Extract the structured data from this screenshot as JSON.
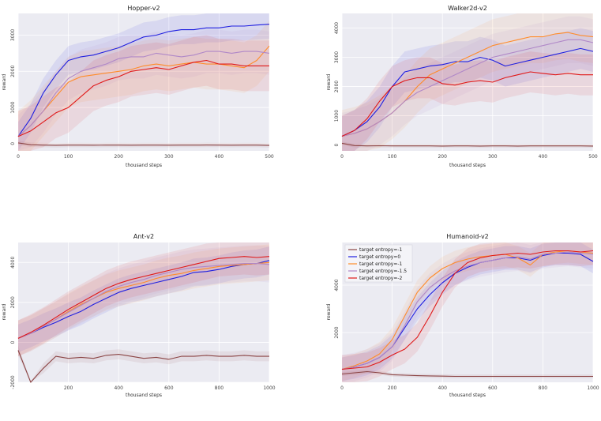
{
  "chart_data": [
    {
      "type": "line",
      "title": "Hopper-v2",
      "xlabel": "thousand steps",
      "ylabel": "reward",
      "xlim": [
        0,
        500
      ],
      "ylim": [
        -200,
        3600
      ],
      "xticks": [
        0,
        100,
        200,
        300,
        400,
        500
      ],
      "yticks": [
        0,
        1000,
        2000,
        3000
      ],
      "x": [
        0,
        25,
        50,
        75,
        100,
        125,
        150,
        175,
        200,
        225,
        250,
        275,
        300,
        325,
        350,
        375,
        400,
        425,
        450,
        475,
        500
      ],
      "series": [
        {
          "name": "target entropy=-1",
          "color": "#8b4545",
          "band": 60,
          "values": [
            20,
            -30,
            -40,
            -45,
            -40,
            -40,
            -42,
            -40,
            -40,
            -42,
            -40,
            -40,
            -42,
            -40,
            -40,
            -38,
            -40,
            -42,
            -40,
            -40,
            -50
          ]
        },
        {
          "name": "target entropy=0",
          "color": "#1f1fe0",
          "band": 400,
          "values": [
            200,
            700,
            1400,
            1900,
            2300,
            2400,
            2450,
            2550,
            2650,
            2800,
            2950,
            3000,
            3100,
            3150,
            3150,
            3200,
            3200,
            3250,
            3250,
            3280,
            3300
          ]
        },
        {
          "name": "target entropy=-1",
          "color": "#ff8c2a",
          "band": 700,
          "values": [
            200,
            500,
            900,
            1300,
            1700,
            1850,
            1900,
            1950,
            2000,
            2050,
            2150,
            2200,
            2150,
            2200,
            2250,
            2200,
            2200,
            2150,
            2100,
            2300,
            2700
          ]
        },
        {
          "name": "target entropy=-1.5",
          "color": "#b088c8",
          "band": 600,
          "values": [
            200,
            500,
            900,
            1400,
            1800,
            2000,
            2100,
            2200,
            2350,
            2400,
            2400,
            2500,
            2450,
            2400,
            2450,
            2550,
            2550,
            2500,
            2550,
            2550,
            2500
          ]
        },
        {
          "name": "target entropy=-2",
          "color": "#e01818",
          "band": 700,
          "values": [
            200,
            350,
            600,
            850,
            1000,
            1300,
            1600,
            1750,
            1850,
            2000,
            2050,
            2100,
            2050,
            2150,
            2250,
            2300,
            2200,
            2200,
            2150,
            2150,
            2150
          ]
        }
      ]
    },
    {
      "type": "line",
      "title": "Walker2d-v2",
      "xlabel": "thousand steps",
      "ylabel": "reward",
      "xlim": [
        0,
        500
      ],
      "ylim": [
        -200,
        4500
      ],
      "xticks": [
        0,
        100,
        200,
        300,
        400,
        500
      ],
      "yticks": [
        0,
        1000,
        2000,
        3000,
        4000
      ],
      "x": [
        0,
        25,
        50,
        75,
        100,
        125,
        150,
        175,
        200,
        225,
        250,
        275,
        300,
        325,
        350,
        375,
        400,
        425,
        450,
        475,
        500
      ],
      "series": [
        {
          "name": "target entropy=-1",
          "color": "#8b4545",
          "band": 60,
          "values": [
            60,
            -20,
            -30,
            -25,
            -30,
            -30,
            -30,
            -30,
            -35,
            -30,
            -30,
            -35,
            -30,
            -30,
            -35,
            -30,
            -30,
            -30,
            -30,
            -30,
            -35
          ]
        },
        {
          "name": "target entropy=0",
          "color": "#1f1fe0",
          "band": 700,
          "values": [
            300,
            500,
            800,
            1300,
            2000,
            2500,
            2600,
            2700,
            2750,
            2850,
            2850,
            3000,
            2900,
            2700,
            2800,
            2900,
            3000,
            3100,
            3200,
            3300,
            3200
          ]
        },
        {
          "name": "target entropy=-1",
          "color": "#ff8c2a",
          "band": 900,
          "values": [
            300,
            400,
            550,
            800,
            1100,
            1500,
            2000,
            2400,
            2600,
            2800,
            3000,
            3200,
            3400,
            3500,
            3600,
            3700,
            3700,
            3800,
            3850,
            3750,
            3700
          ]
        },
        {
          "name": "target entropy=-1.5",
          "color": "#b088c8",
          "band": 800,
          "values": [
            300,
            400,
            550,
            800,
            1100,
            1500,
            1800,
            2000,
            2200,
            2400,
            2600,
            2800,
            3000,
            3100,
            3200,
            3300,
            3400,
            3500,
            3600,
            3600,
            3500
          ]
        },
        {
          "name": "target entropy=-2",
          "color": "#e01818",
          "band": 700,
          "values": [
            300,
            500,
            900,
            1500,
            2000,
            2200,
            2300,
            2300,
            2100,
            2050,
            2150,
            2200,
            2150,
            2300,
            2400,
            2500,
            2450,
            2400,
            2450,
            2400,
            2400
          ]
        }
      ]
    },
    {
      "type": "line",
      "title": "Ant-v2",
      "xlabel": "thousand steps",
      "ylabel": "reward",
      "xlim": [
        0,
        1000
      ],
      "ylim": [
        -2000,
        5000
      ],
      "xticks": [
        200,
        400,
        600,
        800,
        1000
      ],
      "yticks": [
        -2000,
        0,
        2000,
        4000
      ],
      "x": [
        0,
        50,
        100,
        150,
        200,
        250,
        300,
        350,
        400,
        450,
        500,
        550,
        600,
        650,
        700,
        750,
        800,
        850,
        900,
        950,
        1000
      ],
      "series": [
        {
          "name": "target entropy=-1",
          "color": "#8b4545",
          "band": 250,
          "values": [
            -400,
            -2200,
            -1300,
            -700,
            -800,
            -750,
            -800,
            -650,
            -600,
            -700,
            -800,
            -750,
            -850,
            -700,
            -700,
            -650,
            -700,
            -700,
            -650,
            -700,
            -700
          ]
        },
        {
          "name": "target entropy=0",
          "color": "#1f1fe0",
          "band": 700,
          "values": [
            200,
            450,
            750,
            1000,
            1300,
            1550,
            1900,
            2200,
            2500,
            2700,
            2850,
            3000,
            3150,
            3300,
            3500,
            3550,
            3650,
            3800,
            3900,
            3950,
            4100
          ]
        },
        {
          "name": "target entropy=-1",
          "color": "#ff8c2a",
          "band": 900,
          "values": [
            200,
            450,
            800,
            1150,
            1550,
            1900,
            2200,
            2500,
            2700,
            2850,
            3000,
            3200,
            3350,
            3450,
            3600,
            3700,
            3800,
            3850,
            3900,
            3950,
            4000
          ]
        },
        {
          "name": "target entropy=-1.5",
          "color": "#b088c8",
          "band": 900,
          "values": [
            200,
            450,
            800,
            1150,
            1500,
            1850,
            2200,
            2550,
            2800,
            3000,
            3150,
            3350,
            3500,
            3650,
            3750,
            3800,
            3850,
            3900,
            3950,
            3950,
            3900
          ]
        },
        {
          "name": "target entropy=-2",
          "color": "#e01818",
          "band": 900,
          "values": [
            200,
            500,
            850,
            1250,
            1650,
            2000,
            2350,
            2700,
            2950,
            3150,
            3300,
            3450,
            3600,
            3750,
            3900,
            4050,
            4200,
            4250,
            4300,
            4250,
            4300
          ]
        }
      ]
    },
    {
      "type": "line",
      "title": "Humanoid-v2",
      "xlabel": "thousand steps",
      "ylabel": "reward",
      "xlim": [
        0,
        1000
      ],
      "ylim": [
        -100,
        5800
      ],
      "xticks": [
        0,
        200,
        400,
        600,
        800,
        1000
      ],
      "yticks": [
        2000,
        4000
      ],
      "x": [
        0,
        50,
        100,
        150,
        200,
        250,
        300,
        350,
        400,
        450,
        500,
        550,
        600,
        650,
        700,
        750,
        800,
        850,
        900,
        950,
        1000
      ],
      "series": [
        {
          "name": "target entropy=-1",
          "color": "#8b4545",
          "band": 80,
          "values": [
            250,
            300,
            350,
            300,
            220,
            200,
            180,
            170,
            160,
            150,
            150,
            150,
            150,
            150,
            150,
            150,
            150,
            150,
            150,
            150,
            150
          ]
        },
        {
          "name": "target entropy=0",
          "color": "#1f1fe0",
          "band": 500,
          "values": [
            450,
            550,
            700,
            950,
            1400,
            2200,
            3000,
            3600,
            4100,
            4500,
            4750,
            4950,
            5050,
            5150,
            5150,
            5050,
            5250,
            5350,
            5350,
            5300,
            5000
          ]
        },
        {
          "name": "target entropy=-1",
          "color": "#ff8c2a",
          "band": 500,
          "values": [
            450,
            600,
            800,
            1100,
            1700,
            2700,
            3700,
            4300,
            4700,
            4950,
            5100,
            5200,
            5250,
            5300,
            5150,
            4850,
            5300,
            5400,
            5450,
            5400,
            5350
          ]
        },
        {
          "name": "target entropy=-1.5",
          "color": "#b088c8",
          "band": 600,
          "values": [
            450,
            550,
            700,
            950,
            1400,
            2300,
            3300,
            3900,
            4300,
            4600,
            4800,
            4950,
            5050,
            5150,
            5200,
            5100,
            5300,
            5350,
            5400,
            5350,
            5300
          ]
        },
        {
          "name": "target entropy=-2",
          "color": "#e01818",
          "band": 600,
          "values": [
            450,
            500,
            550,
            750,
            1050,
            1300,
            1800,
            2700,
            3700,
            4500,
            4950,
            5150,
            5250,
            5300,
            5350,
            5300,
            5400,
            5450,
            5450,
            5400,
            5450
          ]
        }
      ],
      "legend": {
        "placement": "top-left",
        "entries": [
          "target entropy=-1",
          "target entropy=0",
          "target entropy=-1",
          "target entropy=-1.5",
          "target entropy=-2"
        ]
      }
    }
  ]
}
